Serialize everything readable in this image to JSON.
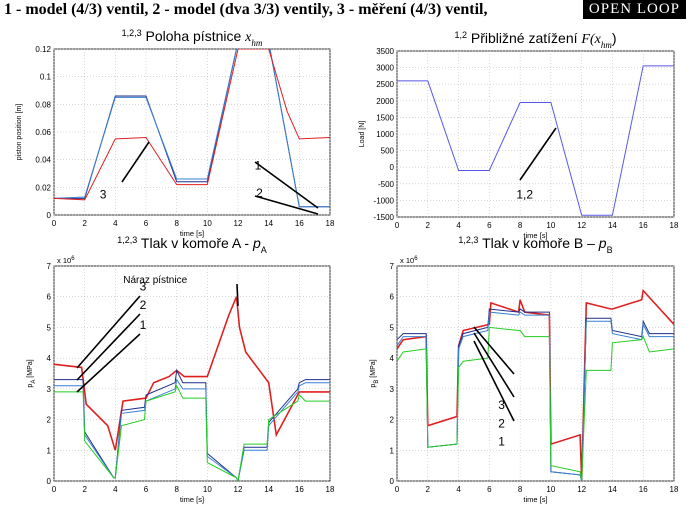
{
  "header": {
    "title": "1 - model (4/3) ventil,  2 - model (dva 3/3) ventily,  3 - měření (4/3) ventil,",
    "mode": "OPEN LOOP"
  },
  "colors": {
    "series1": "#1e2f8c",
    "series2": "#3a7fd0",
    "series3": "#e02020",
    "green": "#22cc22",
    "grid": "#bfbfbf"
  },
  "chart_data": [
    {
      "type": "line",
      "title_sup": "1,2,3",
      "title": "Poloha pístnice",
      "title_math": "x",
      "title_math_sub": "hm",
      "xlabel": "time [s]",
      "ylabel": "piston position [m]",
      "xlim": [
        0,
        18
      ],
      "ylim": [
        0,
        0.12
      ],
      "xticks": [
        0,
        2,
        4,
        6,
        8,
        10,
        12,
        14,
        16,
        18
      ],
      "yticks": [
        "0",
        "0.02",
        "0.04",
        "0.06",
        "0.08",
        "0.1",
        "0.12"
      ],
      "series": [
        {
          "color": "#1e2f8c",
          "x": [
            0,
            2,
            4,
            6,
            8,
            10,
            12,
            14,
            16,
            18
          ],
          "y": [
            0.012,
            0.012,
            0.086,
            0.086,
            0.024,
            0.024,
            0.125,
            0.125,
            0.006,
            0.006
          ]
        },
        {
          "color": "#3a7fd0",
          "x": [
            0,
            2,
            4,
            6,
            8,
            10,
            12,
            14,
            16,
            18
          ],
          "y": [
            0.012,
            0.013,
            0.085,
            0.085,
            0.026,
            0.026,
            0.125,
            0.125,
            0.006,
            0.006
          ]
        },
        {
          "color": "#e02020",
          "x": [
            0,
            2,
            4,
            6,
            8,
            10,
            12,
            14,
            15.2,
            16,
            18
          ],
          "y": [
            0.012,
            0.011,
            0.055,
            0.056,
            0.022,
            0.022,
            0.12,
            0.12,
            0.075,
            0.055,
            0.056
          ]
        }
      ],
      "annotations": [
        {
          "text": "1",
          "x": 13.3,
          "y": 0.033
        },
        {
          "text": "2",
          "x": 13.4,
          "y": 0.013
        },
        {
          "text": "3",
          "x": 3.2,
          "y": 0.012
        }
      ]
    },
    {
      "type": "line",
      "title_sup": "1,2",
      "title": "Přibližné zatížení",
      "title_math": "F(x",
      "title_math_sub": "hm",
      "title_math_end": ")",
      "xlabel": "time [s]",
      "ylabel": "Load [N]",
      "xlim": [
        0,
        18
      ],
      "ylim": [
        -1500,
        3500
      ],
      "xticks": [
        0,
        2,
        4,
        6,
        8,
        10,
        12,
        14,
        16,
        18
      ],
      "yticks": [
        "-1500",
        "-1000",
        "-500",
        "0",
        "500",
        "1000",
        "1500",
        "2000",
        "2500",
        "3000",
        "3500"
      ],
      "series": [
        {
          "color": "#5858e8",
          "x": [
            0,
            2,
            4,
            6,
            8,
            10,
            12,
            14,
            16,
            18
          ],
          "y": [
            2600,
            2600,
            -100,
            -100,
            1950,
            1950,
            -1450,
            -1450,
            3050,
            3050
          ]
        }
      ],
      "annotations": [
        {
          "text": "1,2",
          "x": 8.3,
          "y": -950
        }
      ]
    },
    {
      "type": "line",
      "title_sup": "1,2,3",
      "title": "Tlak v komoře A - ",
      "title_italic": "p",
      "title_sub": "A",
      "xlabel": "time [s]",
      "ylabel": "p",
      "ylabel_sub": "A",
      "ylabel_unit": " [MPa]",
      "exponent": "x 10",
      "exponent_sup": "6",
      "xlim": [
        0,
        18
      ],
      "ylim": [
        0,
        7
      ],
      "xticks": [
        0,
        2,
        4,
        6,
        8,
        10,
        12,
        14,
        16,
        18
      ],
      "yticks": [
        "0",
        "1",
        "2",
        "3",
        "4",
        "5",
        "6",
        "7"
      ],
      "series": [
        {
          "color": "#e02020",
          "x": [
            0,
            1.8,
            2.1,
            3.5,
            4,
            4.5,
            6,
            6.5,
            7.5,
            8,
            8.5,
            10,
            11.4,
            11.9,
            12.1,
            12.5,
            14,
            14.5,
            16,
            16.5,
            18
          ],
          "y": [
            3.8,
            3.7,
            2.5,
            1.8,
            1.0,
            2.6,
            2.7,
            3.2,
            3.4,
            3.6,
            3.4,
            3.4,
            5.4,
            6.0,
            5.0,
            4.2,
            3.2,
            1.5,
            2.9,
            2.9,
            2.9
          ]
        },
        {
          "color": "#1e2f8c",
          "x": [
            0,
            1.9,
            2.0,
            3.9,
            4.0,
            4.4,
            5.9,
            6.0,
            7.9,
            8.0,
            8.4,
            9.9,
            10.0,
            11.9,
            12.0,
            12.4,
            13.9,
            14.0,
            15.9,
            16.0,
            16.4,
            18
          ],
          "y": [
            3.3,
            3.3,
            1.6,
            0.1,
            0.1,
            2.3,
            2.4,
            2.8,
            3.2,
            3.6,
            3.2,
            3.2,
            0.9,
            0.1,
            0.0,
            1.1,
            1.1,
            1.9,
            3.0,
            3.2,
            3.3,
            3.3
          ]
        },
        {
          "color": "#3a7fd0",
          "x": [
            0,
            1.9,
            2.0,
            3.9,
            4.0,
            4.4,
            5.9,
            6.0,
            7.9,
            8.0,
            8.4,
            9.9,
            10.0,
            11.9,
            12.0,
            12.4,
            13.9,
            14.0,
            15.9,
            16.0,
            16.4,
            18
          ],
          "y": [
            3.1,
            3.1,
            1.5,
            0.1,
            0.1,
            2.2,
            2.3,
            2.6,
            3.0,
            3.3,
            3.0,
            3.0,
            0.8,
            0.1,
            0.0,
            1.0,
            1.0,
            1.8,
            2.9,
            3.1,
            3.2,
            3.2
          ]
        },
        {
          "color": "#22cc22",
          "x": [
            0,
            1.9,
            2.0,
            3.9,
            4.0,
            4.4,
            5.9,
            6.0,
            7.9,
            8.0,
            8.4,
            9.9,
            10.0,
            11.9,
            12.0,
            12.4,
            13.9,
            14.0,
            15.9,
            16.0,
            16.4,
            18
          ],
          "y": [
            2.9,
            2.9,
            1.3,
            0.1,
            0.1,
            1.8,
            2.0,
            2.6,
            2.9,
            3.1,
            2.7,
            2.7,
            0.6,
            0.1,
            0.0,
            1.2,
            1.2,
            2.0,
            2.6,
            2.8,
            2.6,
            2.6
          ]
        }
      ],
      "annotations": [
        {
          "text": "3",
          "x": 5.8,
          "y": 6.2
        },
        {
          "text": "2",
          "x": 5.8,
          "y": 5.6
        },
        {
          "text": "1",
          "x": 5.8,
          "y": 4.95
        },
        {
          "text": "Náraz pístnice",
          "x": 6.6,
          "y": 6.45
        }
      ]
    },
    {
      "type": "line",
      "title_sup": "1,2,3",
      "title": "Tlak v komoře B – ",
      "title_italic": "p",
      "title_sub": "B",
      "xlabel": "time [s]",
      "ylabel": "p",
      "ylabel_sub": "B",
      "ylabel_unit": " [MPa]",
      "exponent": "x 10",
      "exponent_sup": "6",
      "xlim": [
        0,
        18
      ],
      "ylim": [
        0,
        7
      ],
      "xticks": [
        0,
        2,
        4,
        6,
        8,
        10,
        12,
        14,
        16,
        18
      ],
      "yticks": [
        "0",
        "1",
        "2",
        "3",
        "4",
        "5",
        "6",
        "7"
      ],
      "series": [
        {
          "color": "#e02020",
          "x": [
            0,
            0.4,
            1.9,
            2.0,
            3.9,
            4.0,
            4.3,
            6,
            6.1,
            7.9,
            8.0,
            8.3,
            9.9,
            10.0,
            11.9,
            12.0,
            12.3,
            13.9,
            14.0,
            15.9,
            16.0,
            18
          ],
          "y": [
            4.3,
            4.6,
            4.7,
            1.8,
            2.1,
            4.4,
            4.9,
            5.1,
            5.8,
            5.5,
            5.9,
            5.5,
            5.4,
            1.2,
            1.5,
            0.0,
            5.8,
            5.6,
            5.6,
            5.9,
            6.2,
            5.1
          ]
        },
        {
          "color": "#1e2f8c",
          "x": [
            0,
            0.4,
            1.9,
            2.0,
            3.9,
            4.0,
            4.3,
            5.9,
            6.0,
            7.9,
            8.0,
            8.3,
            9.9,
            10.0,
            11.9,
            12.0,
            12.3,
            13.9,
            14.0,
            15.9,
            16.0,
            16.4,
            18
          ],
          "y": [
            4.6,
            4.8,
            4.8,
            1.1,
            1.2,
            4.4,
            4.8,
            5.0,
            5.6,
            5.5,
            5.6,
            5.5,
            5.5,
            0.3,
            0.2,
            0.0,
            5.3,
            5.3,
            4.9,
            4.7,
            5.2,
            4.8,
            4.8
          ]
        },
        {
          "color": "#3a7fd0",
          "x": [
            0,
            0.4,
            1.9,
            2.0,
            3.9,
            4.0,
            4.3,
            5.9,
            6.0,
            7.9,
            8.0,
            8.3,
            9.9,
            10.0,
            11.9,
            12.0,
            12.3,
            13.9,
            14.0,
            15.9,
            16.0,
            16.4,
            18
          ],
          "y": [
            4.4,
            4.7,
            4.7,
            1.1,
            1.2,
            4.3,
            4.7,
            4.9,
            5.5,
            5.4,
            5.5,
            5.4,
            5.4,
            0.3,
            0.2,
            0.0,
            5.2,
            5.2,
            4.8,
            4.6,
            5.1,
            4.7,
            4.7
          ]
        },
        {
          "color": "#22cc22",
          "x": [
            0,
            0.4,
            1.9,
            2.0,
            3.9,
            4.0,
            4.3,
            5.9,
            6.0,
            7.9,
            8.0,
            8.3,
            9.9,
            10.0,
            11.9,
            12.0,
            12.3,
            13.9,
            14.0,
            15.9,
            16.0,
            16.4,
            18
          ],
          "y": [
            3.9,
            4.2,
            4.3,
            1.1,
            1.2,
            3.7,
            3.9,
            4.0,
            5.0,
            4.9,
            4.9,
            4.7,
            4.7,
            0.5,
            0.3,
            0.0,
            3.6,
            3.6,
            4.5,
            4.6,
            4.7,
            4.2,
            4.3
          ]
        }
      ],
      "annotations": [
        {
          "text": "3",
          "x": 6.8,
          "y": 2.35
        },
        {
          "text": "2",
          "x": 6.8,
          "y": 1.75
        },
        {
          "text": "1",
          "x": 6.8,
          "y": 1.15
        }
      ]
    }
  ]
}
